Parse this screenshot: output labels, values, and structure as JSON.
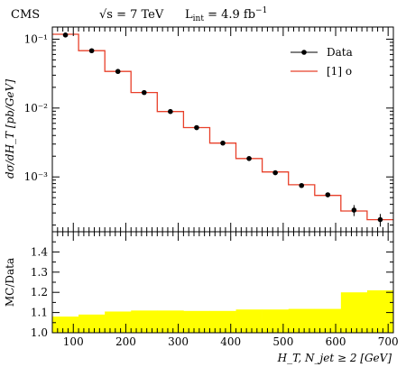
{
  "header": {
    "experiment": "CMS",
    "energy": "√s = 7 TeV",
    "lumi": "L",
    "lumi_sub": "int",
    "lumi_value": " = 4.9 fb",
    "lumi_sup": "−1"
  },
  "colors": {
    "data": "#000000",
    "mc": "#e8402a",
    "band": "#ffff00"
  },
  "chart_data": [
    {
      "type": "line",
      "panel": "main",
      "ylabel": "dσ/dH_T [pb/GeV]",
      "yscale": "log",
      "ylim": [
        0.00016,
        0.15
      ],
      "xlim": [
        60,
        710
      ],
      "y_tick_labels": [
        "10⁻¹",
        "10⁻²",
        "10⁻³"
      ],
      "legend_position": "top-right",
      "series": [
        {
          "name": "Data",
          "kind": "points",
          "x": [
            85,
            135,
            185,
            235,
            285,
            335,
            385,
            435,
            485,
            535,
            585,
            635,
            685
          ],
          "y": [
            0.115,
            0.068,
            0.034,
            0.0168,
            0.0089,
            0.0052,
            0.0031,
            0.00185,
            0.00115,
            0.00075,
            0.00055,
            0.00033,
            0.00024
          ],
          "err_low": [
            0.002,
            0.0015,
            0.0008,
            0.0004,
            0.0002,
            0.00012,
            8e-05,
            5e-05,
            4e-05,
            4e-05,
            4e-05,
            6e-05,
            5e-05
          ],
          "err_high": [
            0.002,
            0.0015,
            0.0008,
            0.0004,
            0.0002,
            0.00012,
            8e-05,
            5e-05,
            4e-05,
            4e-05,
            4e-05,
            6e-05,
            5e-05
          ]
        },
        {
          "name": "[1] o",
          "kind": "step",
          "bin_edges": [
            60,
            110,
            160,
            210,
            260,
            310,
            360,
            410,
            460,
            510,
            560,
            610,
            660,
            710
          ],
          "values": [
            0.118,
            0.068,
            0.034,
            0.0168,
            0.0089,
            0.0052,
            0.0031,
            0.00185,
            0.00118,
            0.00077,
            0.00054,
            0.00032,
            0.00024
          ]
        }
      ]
    },
    {
      "type": "area",
      "panel": "ratio",
      "ylabel": "MC/Data",
      "xlabel": "H_T, N_jet ≥ 2 [GeV]",
      "ylim": [
        1.0,
        1.5
      ],
      "xlim": [
        60,
        710
      ],
      "x_ticks": [
        100,
        200,
        300,
        400,
        500,
        600,
        700
      ],
      "x_tick_labels": [
        "100",
        "200",
        "300",
        "400",
        "500",
        "600",
        "700"
      ],
      "y_ticks": [
        1.0,
        1.1,
        1.2,
        1.3,
        1.4
      ],
      "y_tick_labels": [
        "1.0",
        "1.1",
        "1.2",
        "1.3",
        "1.4"
      ],
      "band": {
        "bin_edges": [
          60,
          110,
          160,
          210,
          260,
          310,
          360,
          410,
          460,
          510,
          560,
          610,
          660,
          710
        ],
        "upper": [
          1.08,
          1.09,
          1.105,
          1.11,
          1.11,
          1.108,
          1.108,
          1.115,
          1.115,
          1.118,
          1.118,
          1.2,
          1.21
        ],
        "lower": [
          1.0,
          1.0,
          1.0,
          1.0,
          1.0,
          1.0,
          1.0,
          1.0,
          1.0,
          1.0,
          1.0,
          1.0,
          1.0
        ]
      }
    }
  ]
}
